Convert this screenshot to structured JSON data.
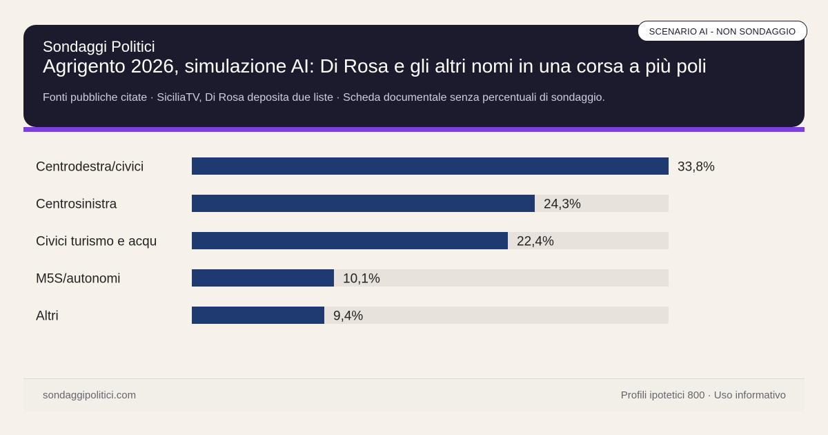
{
  "header": {
    "brand": "Sondaggi Politici",
    "title": "Agrigento 2026, simulazione AI: Di Rosa e gli altri nomi in una corsa a più poli",
    "subtitle": "Fonti pubbliche citate · SiciliaTV, Di Rosa deposita due liste · Scheda documentale senza percentuali di sondaggio.",
    "badge": "SCENARIO AI - NON SONDAGGIO"
  },
  "chart_data": {
    "type": "bar",
    "orientation": "horizontal",
    "categories": [
      "Centrodestra/civici",
      "Centrosinistra",
      "Civici turismo e acqu",
      "M5S/autonomi",
      "Altri"
    ],
    "values": [
      33.8,
      24.3,
      22.4,
      10.1,
      9.4
    ],
    "value_labels": [
      "33,8%",
      "24,3%",
      "22,4%",
      "10,1%",
      "9,4%"
    ],
    "xlim": [
      0,
      33.8
    ],
    "grid": false,
    "colors": {
      "bar": "#1e3a6e",
      "track": "#e8e2dc",
      "text": "#222222"
    }
  },
  "footer": {
    "site": "sondaggipolitici.com",
    "note": "Profili ipotetici 800 · Uso informativo"
  }
}
